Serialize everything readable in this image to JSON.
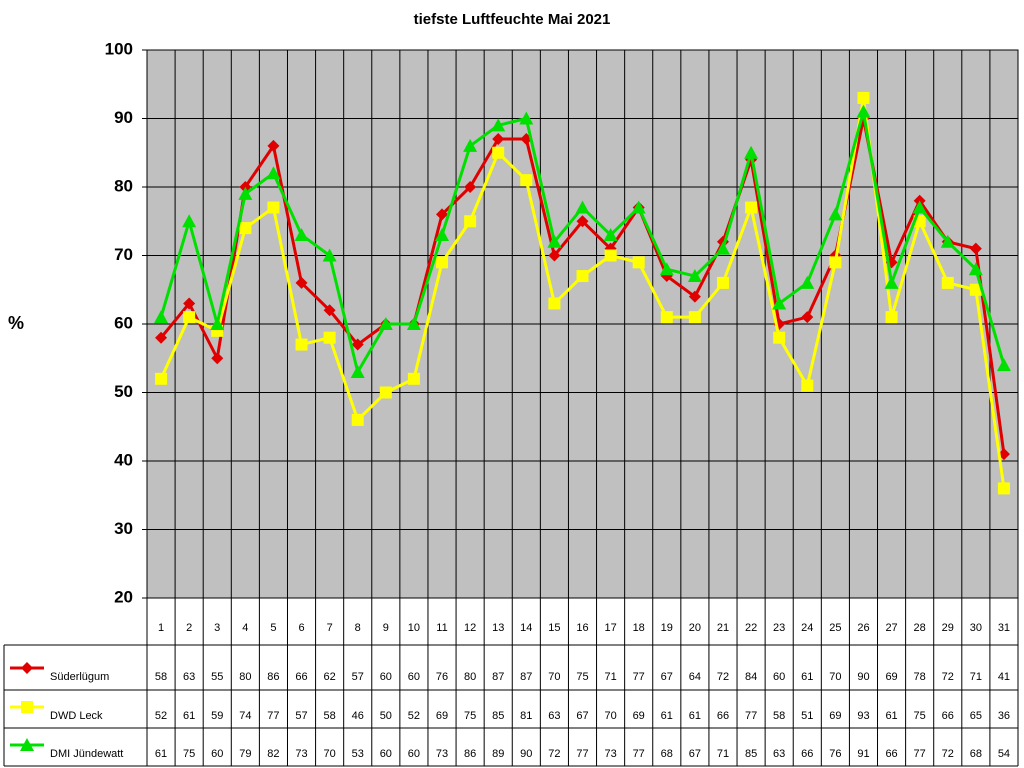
{
  "chart_data": {
    "type": "line",
    "title": "tiefste Luftfeuchte Mai 2021",
    "y_label": "%",
    "categories": [
      "1",
      "2",
      "3",
      "4",
      "5",
      "6",
      "7",
      "8",
      "9",
      "10",
      "11",
      "12",
      "13",
      "14",
      "15",
      "16",
      "17",
      "18",
      "19",
      "20",
      "21",
      "22",
      "23",
      "24",
      "25",
      "26",
      "27",
      "28",
      "29",
      "30",
      "31"
    ],
    "series": [
      {
        "name": "Süderlügum",
        "color": "#e00000",
        "marker": "diamond",
        "values": [
          58,
          63,
          55,
          80,
          86,
          66,
          62,
          57,
          60,
          60,
          76,
          80,
          87,
          87,
          70,
          75,
          71,
          77,
          67,
          64,
          72,
          84,
          60,
          61,
          70,
          90,
          69,
          78,
          72,
          71,
          41
        ]
      },
      {
        "name": "DWD Leck",
        "color": "#ffff00",
        "marker": "square",
        "values": [
          52,
          61,
          59,
          74,
          77,
          57,
          58,
          46,
          50,
          52,
          69,
          75,
          85,
          81,
          63,
          67,
          70,
          69,
          61,
          61,
          66,
          77,
          58,
          51,
          69,
          93,
          61,
          75,
          66,
          65,
          36
        ]
      },
      {
        "name": "DMI Jündewatt",
        "color": "#00e000",
        "marker": "triangle",
        "values": [
          61,
          75,
          60,
          79,
          82,
          73,
          70,
          53,
          60,
          60,
          73,
          86,
          89,
          90,
          72,
          77,
          73,
          77,
          68,
          67,
          71,
          85,
          63,
          66,
          76,
          91,
          66,
          77,
          72,
          68,
          54
        ]
      }
    ],
    "ylim": [
      20,
      100
    ],
    "yticks": [
      20,
      30,
      40,
      50,
      60,
      70,
      80,
      90,
      100
    ],
    "grid": true,
    "plot_background": "#c0c0c0"
  }
}
